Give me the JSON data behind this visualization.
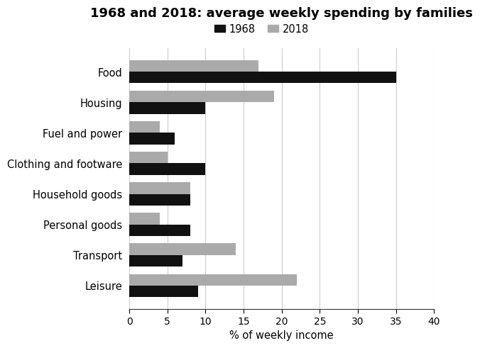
{
  "title": "1968 and 2018: average weekly spending by families",
  "categories": [
    "Food",
    "Housing",
    "Fuel and power",
    "Clothing and footware",
    "Household goods",
    "Personal goods",
    "Transport",
    "Leisure"
  ],
  "values_1968": [
    35,
    10,
    6,
    10,
    8,
    8,
    7,
    9
  ],
  "values_2018": [
    17,
    19,
    4,
    5,
    8,
    4,
    14,
    22
  ],
  "color_1968": "#111111",
  "color_2018": "#aaaaaa",
  "xlabel": "% of weekly income",
  "xlim": [
    0,
    40
  ],
  "xticks": [
    0,
    5,
    10,
    15,
    20,
    25,
    30,
    35,
    40
  ],
  "legend_labels": [
    "1968",
    "2018"
  ],
  "bar_height": 0.38,
  "background_color": "#ffffff",
  "title_fontsize": 13,
  "label_fontsize": 10.5,
  "tick_fontsize": 10
}
